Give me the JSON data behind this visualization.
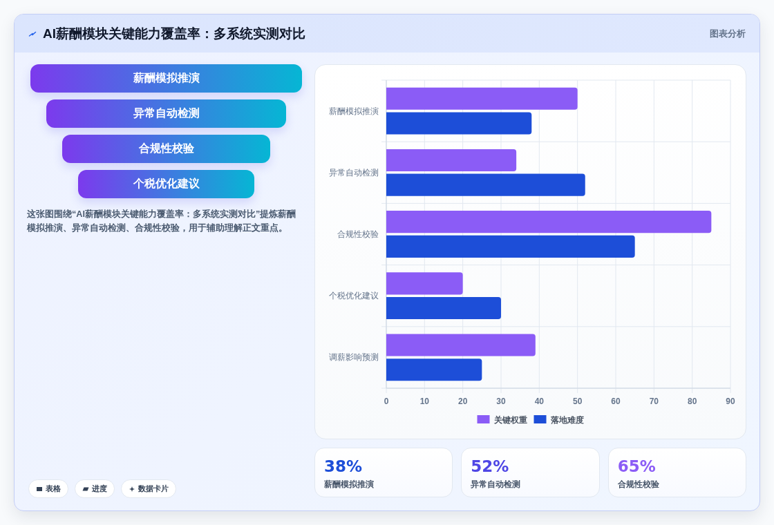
{
  "chart_data": [
    {
      "type": "other",
      "title": "AI薪酬模块关键能力覆盖率：多系统实测对比",
      "categories": [
        "薪酬模拟推演",
        "异常自动检测",
        "合规性校验",
        "个税优化建议"
      ],
      "annotations": [
        "图表分析",
        "这张图围绕“AI薪酬模块关键能力覆盖率：多系统实测对比”提炼薪酬模拟推演、异常自动检测、合规性校验，用于辅助理解正文重点。",
        "表格",
        "进度",
        "数据卡片"
      ]
    },
    {
      "type": "bar",
      "orientation": "horizontal",
      "categories": [
        "薪酬模拟推演",
        "异常自动检测",
        "合规性校验",
        "个税优化建议",
        "调薪影响预测"
      ],
      "series": [
        {
          "name": "关键权重",
          "color": "#8b5cf6",
          "values": [
            50,
            34,
            85,
            20,
            39
          ]
        },
        {
          "name": "落地难度",
          "color": "#1d4ed8",
          "values": [
            38,
            52,
            65,
            30,
            25
          ]
        }
      ],
      "xlim": [
        0,
        90
      ],
      "xticks": [
        0,
        10,
        20,
        30,
        40,
        50,
        60,
        70,
        80,
        90
      ],
      "grid": true,
      "legend": "bottom"
    },
    {
      "type": "other",
      "categories": [
        "薪酬模拟推演",
        "异常自动检测",
        "合规性校验"
      ],
      "value_labels": [
        "38%",
        "52%",
        "65%"
      ]
    }
  ]
}
